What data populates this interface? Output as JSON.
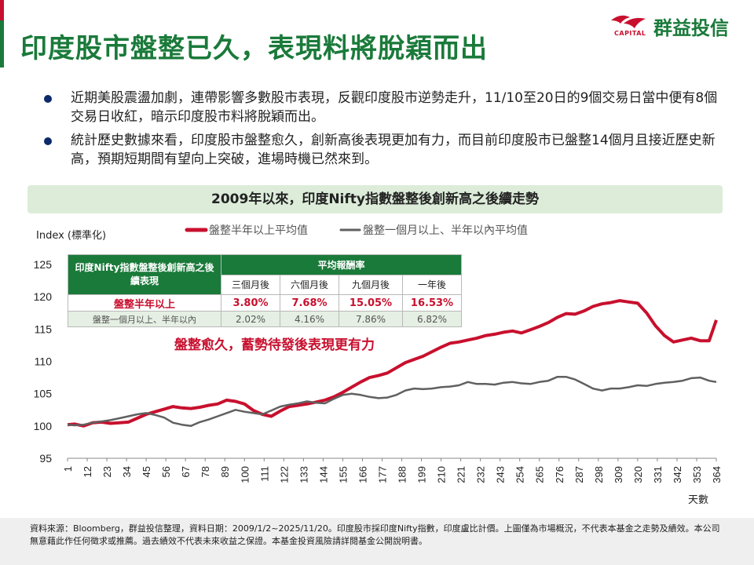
{
  "page": {
    "title": "印度股市盤整已久，表現料將脫穎而出",
    "logo": {
      "brand": "群益投信",
      "sub": "CAPITAL"
    },
    "bullets": [
      "近期美股震盪加劇，連帶影響多數股市表現，反觀印度股市逆勢走升，11/10至20日的9個交易日當中便有8個交易日收紅，暗示印度股市料將脫穎而出。",
      "統計歷史數據來看，印度股市盤整愈久，創新高後表現更加有力，而目前印度股市已盤整14個月且接近歷史新高，預期短期間有望向上突破，進場時機已然來到。"
    ],
    "chart_header": "2009年以來，印度Nifty指數盤整後創新高之後續走勢",
    "annotation": "盤整愈久，蓄勢待發後表現更有力",
    "footer": "資料來源：Bloomberg，群益投信整理，資料日期：2009/1/2~2025/11/20。印度股市採印度Nifty指數，印度盧比計價。上圖僅為市場概況，不代表本基金之走勢及績效。本公司無意藉此作任何徵求或推薦。過去績效不代表未來收益之保證。本基金投資風險請詳閱基金公開說明書。"
  },
  "table": {
    "corner": "印度Nifty指數盤整後創新高之後續表現",
    "group_header": "平均報酬率",
    "columns": [
      "三個月後",
      "六個月後",
      "九個月後",
      "一年後"
    ],
    "rows": [
      {
        "label": "盤整半年以上",
        "values": [
          "3.80%",
          "7.68%",
          "15.05%",
          "16.53%"
        ]
      },
      {
        "label": "盤整一個月以上、半年以內",
        "values": [
          "2.02%",
          "4.16%",
          "7.86%",
          "6.82%"
        ]
      }
    ]
  },
  "colors": {
    "green": "#1a7a3a",
    "red": "#c8102e",
    "navy": "#0b2a6b",
    "gray_series": "#606060"
  },
  "chart_data": {
    "type": "line",
    "ylabel": "Index (標準化)",
    "xlabel": "天數",
    "ylim": [
      95,
      125
    ],
    "yticks": [
      95,
      100,
      105,
      110,
      115,
      120,
      125
    ],
    "xlim": [
      1,
      364
    ],
    "xticks": [
      1,
      12,
      23,
      34,
      45,
      56,
      67,
      78,
      89,
      100,
      111,
      122,
      133,
      144,
      155,
      166,
      177,
      188,
      199,
      210,
      221,
      232,
      243,
      254,
      265,
      276,
      287,
      298,
      309,
      320,
      331,
      342,
      353,
      364
    ],
    "legend_position": "top",
    "series": [
      {
        "name": "盤整半年以上平均值",
        "color": "#c8102e",
        "points": [
          [
            1,
            100.2
          ],
          [
            5,
            100.3
          ],
          [
            10,
            100.0
          ],
          [
            15,
            100.5
          ],
          [
            20,
            100.6
          ],
          [
            25,
            100.4
          ],
          [
            30,
            100.5
          ],
          [
            35,
            100.6
          ],
          [
            40,
            101.2
          ],
          [
            45,
            101.8
          ],
          [
            50,
            102.2
          ],
          [
            55,
            102.6
          ],
          [
            60,
            103.0
          ],
          [
            65,
            102.8
          ],
          [
            70,
            102.7
          ],
          [
            75,
            102.9
          ],
          [
            80,
            103.2
          ],
          [
            85,
            103.4
          ],
          [
            90,
            104.0
          ],
          [
            95,
            103.8
          ],
          [
            100,
            103.4
          ],
          [
            105,
            102.4
          ],
          [
            110,
            101.8
          ],
          [
            115,
            101.5
          ],
          [
            120,
            102.3
          ],
          [
            125,
            103.0
          ],
          [
            130,
            103.2
          ],
          [
            135,
            103.4
          ],
          [
            140,
            103.7
          ],
          [
            145,
            104.0
          ],
          [
            150,
            104.5
          ],
          [
            155,
            105.2
          ],
          [
            160,
            106.0
          ],
          [
            165,
            106.8
          ],
          [
            170,
            107.5
          ],
          [
            175,
            107.8
          ],
          [
            180,
            108.2
          ],
          [
            185,
            109.0
          ],
          [
            190,
            109.8
          ],
          [
            195,
            110.3
          ],
          [
            200,
            110.8
          ],
          [
            205,
            111.5
          ],
          [
            210,
            112.2
          ],
          [
            215,
            112.8
          ],
          [
            220,
            113.0
          ],
          [
            225,
            113.3
          ],
          [
            230,
            113.6
          ],
          [
            235,
            114.0
          ],
          [
            240,
            114.2
          ],
          [
            245,
            114.5
          ],
          [
            250,
            114.7
          ],
          [
            255,
            114.4
          ],
          [
            260,
            114.9
          ],
          [
            265,
            115.4
          ],
          [
            270,
            116.0
          ],
          [
            275,
            116.8
          ],
          [
            280,
            117.4
          ],
          [
            285,
            117.3
          ],
          [
            290,
            117.8
          ],
          [
            295,
            118.5
          ],
          [
            300,
            118.9
          ],
          [
            305,
            119.1
          ],
          [
            310,
            119.4
          ],
          [
            315,
            119.2
          ],
          [
            320,
            119.0
          ],
          [
            325,
            117.5
          ],
          [
            330,
            115.5
          ],
          [
            335,
            114.0
          ],
          [
            340,
            113.0
          ],
          [
            345,
            113.3
          ],
          [
            350,
            113.6
          ],
          [
            355,
            113.2
          ],
          [
            360,
            113.2
          ],
          [
            364,
            116.4
          ]
        ]
      },
      {
        "name": "盤整一個月以上、半年以內平均值",
        "color": "#606060",
        "points": [
          [
            1,
            100.2
          ],
          [
            5,
            100.1
          ],
          [
            10,
            100.2
          ],
          [
            15,
            100.5
          ],
          [
            20,
            100.7
          ],
          [
            25,
            100.9
          ],
          [
            30,
            101.2
          ],
          [
            35,
            101.5
          ],
          [
            40,
            101.8
          ],
          [
            45,
            102.0
          ],
          [
            50,
            101.7
          ],
          [
            55,
            101.3
          ],
          [
            60,
            100.5
          ],
          [
            65,
            100.2
          ],
          [
            70,
            100.0
          ],
          [
            75,
            100.6
          ],
          [
            80,
            101.0
          ],
          [
            85,
            101.5
          ],
          [
            90,
            102.0
          ],
          [
            95,
            102.5
          ],
          [
            100,
            102.2
          ],
          [
            105,
            102.0
          ],
          [
            110,
            101.8
          ],
          [
            115,
            102.4
          ],
          [
            120,
            103.0
          ],
          [
            125,
            103.3
          ],
          [
            130,
            103.5
          ],
          [
            135,
            103.8
          ],
          [
            140,
            103.6
          ],
          [
            145,
            103.5
          ],
          [
            150,
            104.2
          ],
          [
            155,
            104.8
          ],
          [
            160,
            105.0
          ],
          [
            165,
            104.8
          ],
          [
            170,
            104.5
          ],
          [
            175,
            104.3
          ],
          [
            180,
            104.4
          ],
          [
            185,
            104.8
          ],
          [
            190,
            105.5
          ],
          [
            195,
            105.8
          ],
          [
            200,
            105.7
          ],
          [
            205,
            105.8
          ],
          [
            210,
            106.0
          ],
          [
            215,
            106.1
          ],
          [
            220,
            106.3
          ],
          [
            225,
            106.8
          ],
          [
            230,
            106.5
          ],
          [
            235,
            106.5
          ],
          [
            240,
            106.4
          ],
          [
            245,
            106.7
          ],
          [
            250,
            106.8
          ],
          [
            255,
            106.6
          ],
          [
            260,
            106.5
          ],
          [
            265,
            106.8
          ],
          [
            270,
            107.0
          ],
          [
            275,
            107.6
          ],
          [
            280,
            107.6
          ],
          [
            285,
            107.2
          ],
          [
            290,
            106.5
          ],
          [
            295,
            105.8
          ],
          [
            300,
            105.5
          ],
          [
            305,
            105.8
          ],
          [
            310,
            105.8
          ],
          [
            315,
            106.0
          ],
          [
            320,
            106.3
          ],
          [
            325,
            106.2
          ],
          [
            330,
            106.5
          ],
          [
            335,
            106.7
          ],
          [
            340,
            106.8
          ],
          [
            345,
            107.0
          ],
          [
            350,
            107.4
          ],
          [
            355,
            107.5
          ],
          [
            360,
            107.0
          ],
          [
            364,
            106.8
          ]
        ]
      }
    ]
  }
}
